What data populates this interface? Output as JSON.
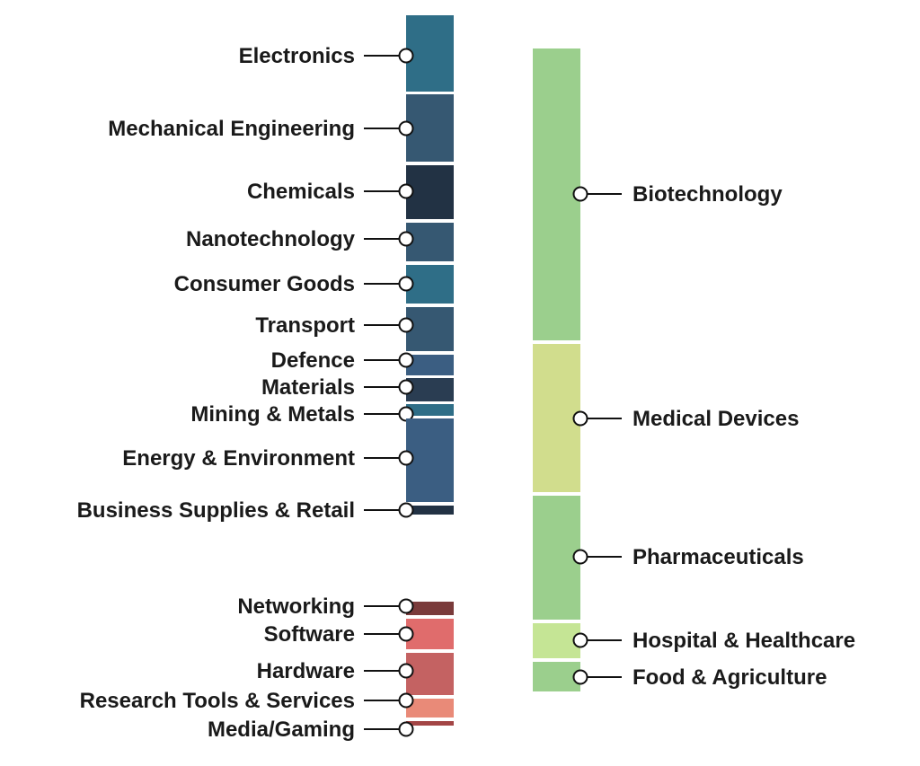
{
  "left_column": {
    "segments": [
      {
        "label": "Electronics",
        "color": "#2f6e87"
      },
      {
        "label": "Mechanical Engineering",
        "color": "#365872"
      },
      {
        "label": "Chemicals",
        "color": "#223244"
      },
      {
        "label": "Nanotechnology",
        "color": "#365872"
      },
      {
        "label": "Consumer Goods",
        "color": "#2f6e87"
      },
      {
        "label": "Transport",
        "color": "#365872"
      },
      {
        "label": "Defence",
        "color": "#3b5e82"
      },
      {
        "label": "Materials",
        "color": "#2a3d52"
      },
      {
        "label": "Mining & Metals",
        "color": "#2f6e87"
      },
      {
        "label": "Energy & Environment",
        "color": "#3b5e82"
      },
      {
        "label": "Business Supplies & Retail",
        "color": "#223244"
      },
      {
        "label": "Networking",
        "color": "#7a3b3b"
      },
      {
        "label": "Software",
        "color": "#e06c6c"
      },
      {
        "label": "Hardware",
        "color": "#c46262"
      },
      {
        "label": "Research Tools & Services",
        "color": "#e98a78"
      },
      {
        "label": "Media/Gaming",
        "color": "#a34545"
      }
    ]
  },
  "right_column": {
    "segments": [
      {
        "label": "Biotechnology",
        "color": "#9bcf8d"
      },
      {
        "label": "Medical Devices",
        "color": "#d1dd8d"
      },
      {
        "label": "Pharmaceuticals",
        "color": "#9bcf8d"
      },
      {
        "label": "Hospital & Healthcare",
        "color": "#c5e595"
      },
      {
        "label": "Food & Agriculture",
        "color": "#9bcf8d"
      }
    ]
  }
}
